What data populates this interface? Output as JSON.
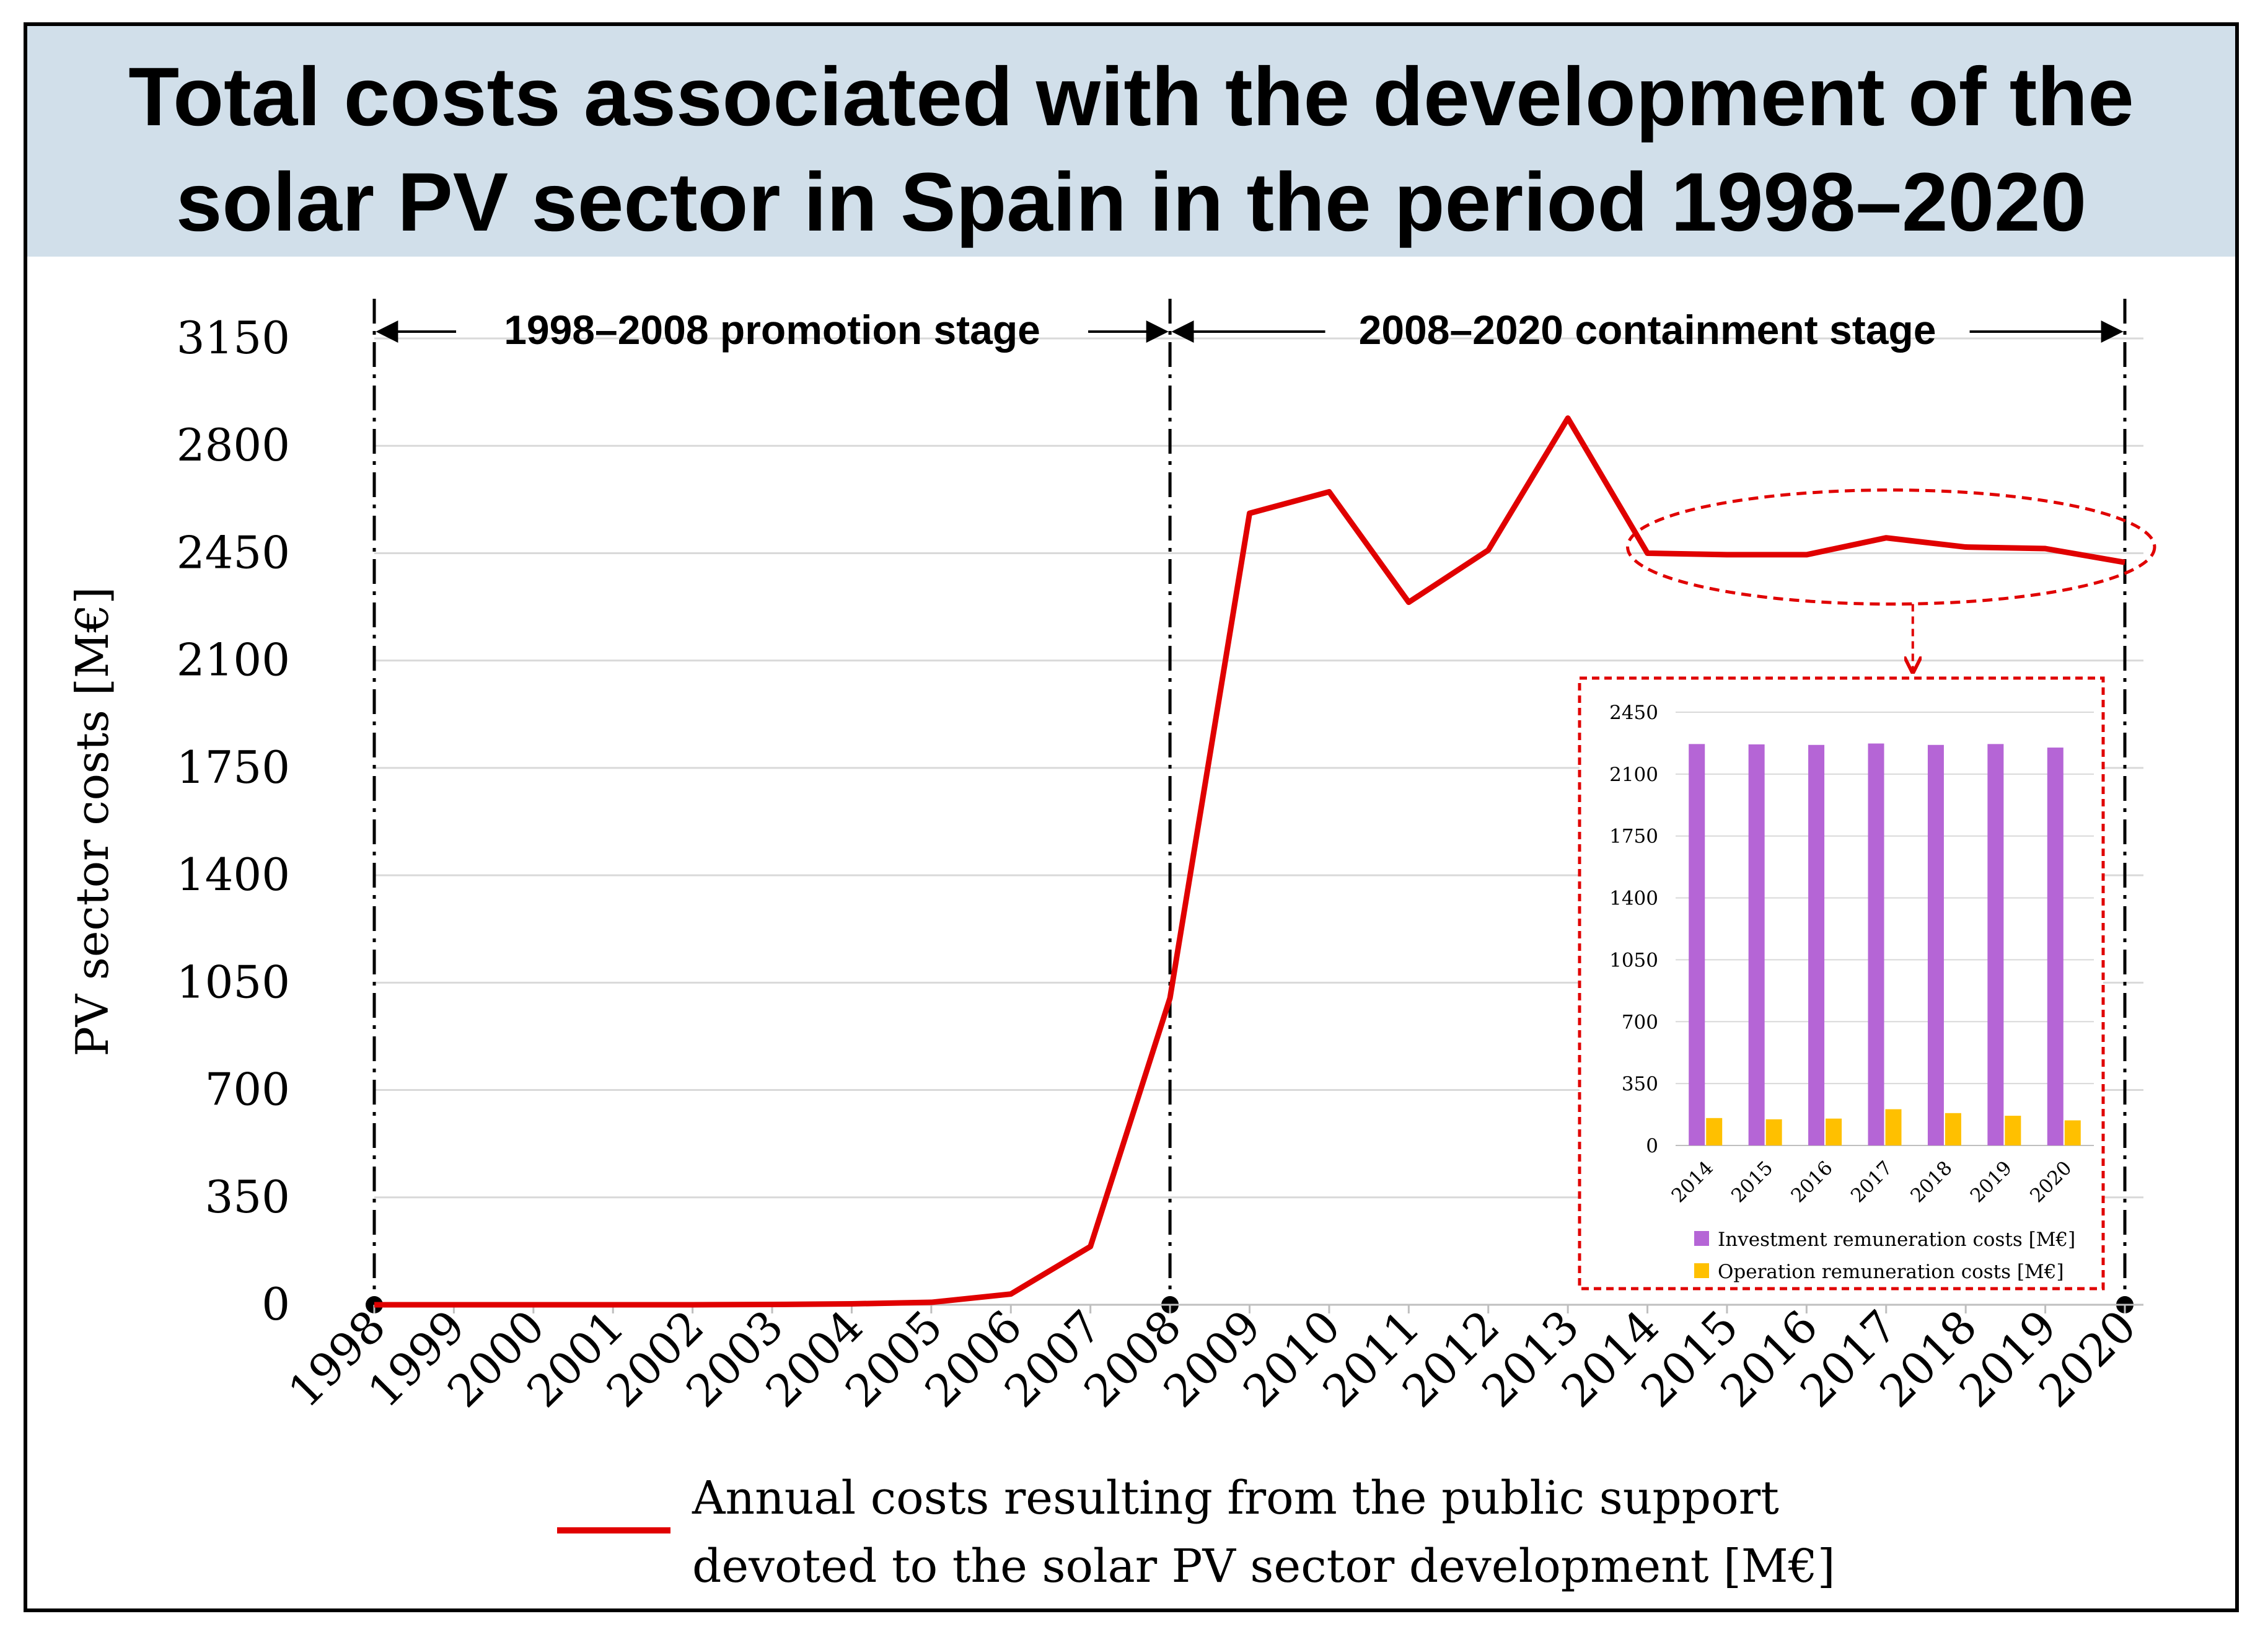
{
  "chart_data": {
    "type": "line",
    "title": "Total costs associated with the development of the\nsolar PV sector in Spain in the period 1998–2020",
    "ylabel": "PV sector costs [M€]",
    "xlabel": "",
    "ylim": [
      0,
      3150
    ],
    "yticks": [
      0,
      350,
      700,
      1050,
      1400,
      1750,
      2100,
      2450,
      2800,
      3150
    ],
    "categories": [
      "1998",
      "1999",
      "2000",
      "2001",
      "2002",
      "2003",
      "2004",
      "2005",
      "2006",
      "2007",
      "2008",
      "2009",
      "2010",
      "2011",
      "2012",
      "2013",
      "2014",
      "2015",
      "2016",
      "2017",
      "2018",
      "2019",
      "2020"
    ],
    "series": [
      {
        "name": "Annual costs resulting from the public support\ndevoted to the solar PV sector development [M€]",
        "color": "#e00000",
        "values": [
          0,
          0,
          0,
          0,
          0,
          1,
          3,
          8,
          35,
          190,
          1000,
          2580,
          2650,
          2290,
          2460,
          2890,
          2450,
          2445,
          2445,
          2500,
          2470,
          2465,
          2420
        ]
      }
    ],
    "legend_position": "bottom",
    "grid": true,
    "stages": [
      {
        "label": "1998–2008 promotion stage",
        "from": "1998",
        "to": "2008"
      },
      {
        "label": "2008–2020 containment stage",
        "from": "2008",
        "to": "2020"
      }
    ],
    "highlight_region": {
      "from": "2014",
      "to": "2020"
    },
    "inset": {
      "type": "bar",
      "categories": [
        "2014",
        "2015",
        "2016",
        "2017",
        "2018",
        "2019",
        "2020"
      ],
      "ylim": [
        0,
        2450
      ],
      "yticks": [
        0,
        350,
        700,
        1050,
        1400,
        1750,
        2100,
        2450
      ],
      "series": [
        {
          "name": "Investment remuneration costs [M€]",
          "color": "#b565d6",
          "values": [
            2270,
            2268,
            2265,
            2273,
            2265,
            2270,
            2250
          ]
        },
        {
          "name": "Operation remuneration costs [M€]",
          "color": "#ffc000",
          "values": [
            155,
            148,
            152,
            205,
            183,
            168,
            142
          ]
        }
      ]
    }
  }
}
